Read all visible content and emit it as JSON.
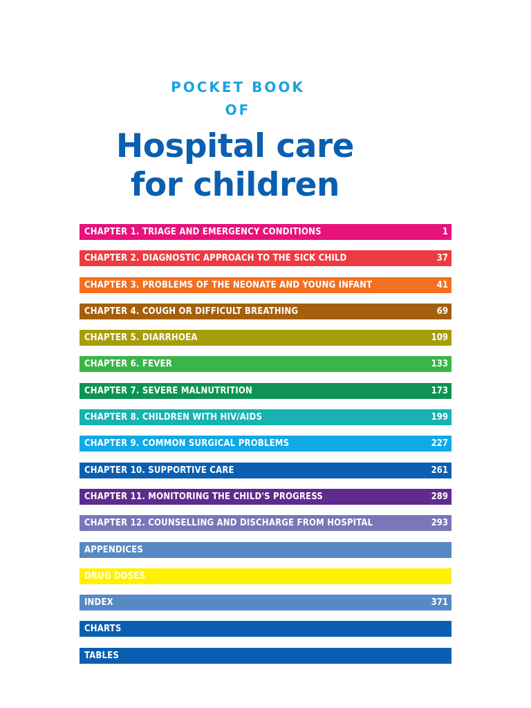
{
  "header": {
    "kicker_line_1": "POCKET BOOK",
    "kicker_line_2": "OF",
    "title_line_1": "Hospital care",
    "title_line_2": "for children"
  },
  "colors": {
    "kicker": "#1aa3e3",
    "title": "#0a5fb0"
  },
  "toc": [
    {
      "label": "CHAPTER 1. TRIAGE AND EMERGENCY CONDITIONS",
      "page": "1",
      "color": "#e8127c",
      "text_color": "#ffffff"
    },
    {
      "label": "CHAPTER 2. DIAGNOSTIC APPROACH TO THE SICK CHILD",
      "page": "37",
      "color": "#ee3a43",
      "text_color": "#ffffff"
    },
    {
      "label": "CHAPTER 3. PROBLEMS OF THE NEONATE AND YOUNG INFANT",
      "page": "41",
      "color": "#f36f21",
      "text_color": "#ffffff"
    },
    {
      "label": "CHAPTER 4. COUGH OR DIFFICULT BREATHING",
      "page": "69",
      "color": "#a5600e",
      "text_color": "#ffffff"
    },
    {
      "label": "CHAPTER 5. DIARRHOEA",
      "page": "109",
      "color": "#a79d0a",
      "text_color": "#ffffff"
    },
    {
      "label": "CHAPTER 6. FEVER",
      "page": "133",
      "color": "#3ab54a",
      "text_color": "#ffffff"
    },
    {
      "label": "CHAPTER 7. SEVERE MALNUTRITION",
      "page": "173",
      "color": "#0d9454",
      "text_color": "#ffffff"
    },
    {
      "label": "CHAPTER 8. CHILDREN WITH HIV/AIDS",
      "page": "199",
      "color": "#16b3b0",
      "text_color": "#ffffff"
    },
    {
      "label": "CHAPTER 9. COMMON SURGICAL PROBLEMS",
      "page": "227",
      "color": "#0fa9e6",
      "text_color": "#ffffff"
    },
    {
      "label": "CHAPTER 10. SUPPORTIVE CARE",
      "page": "261",
      "color": "#0a5fb0",
      "text_color": "#ffffff"
    },
    {
      "label": "CHAPTER 11. MONITORING THE CHILD'S PROGRESS",
      "page": "289",
      "color": "#5e2c8c",
      "text_color": "#ffffff"
    },
    {
      "label": "CHAPTER 12. COUNSELLING AND DISCHARGE FROM HOSPITAL",
      "page": "293",
      "color": "#7b76b8",
      "text_color": "#ffffff"
    },
    {
      "label": "APPENDICES",
      "page": "",
      "color": "#5789c4",
      "text_color": "#ffffff"
    },
    {
      "label": "DRUG DOSES",
      "page": "",
      "color": "#fff200",
      "text_color": "#ffffff"
    },
    {
      "label": "INDEX",
      "page": "371",
      "color": "#5789c4",
      "text_color": "#ffffff"
    },
    {
      "label": "CHARTS",
      "page": "",
      "color": "#0a5fb0",
      "text_color": "#ffffff"
    },
    {
      "label": "TABLES",
      "page": "",
      "color": "#0a5fb0",
      "text_color": "#ffffff"
    }
  ]
}
